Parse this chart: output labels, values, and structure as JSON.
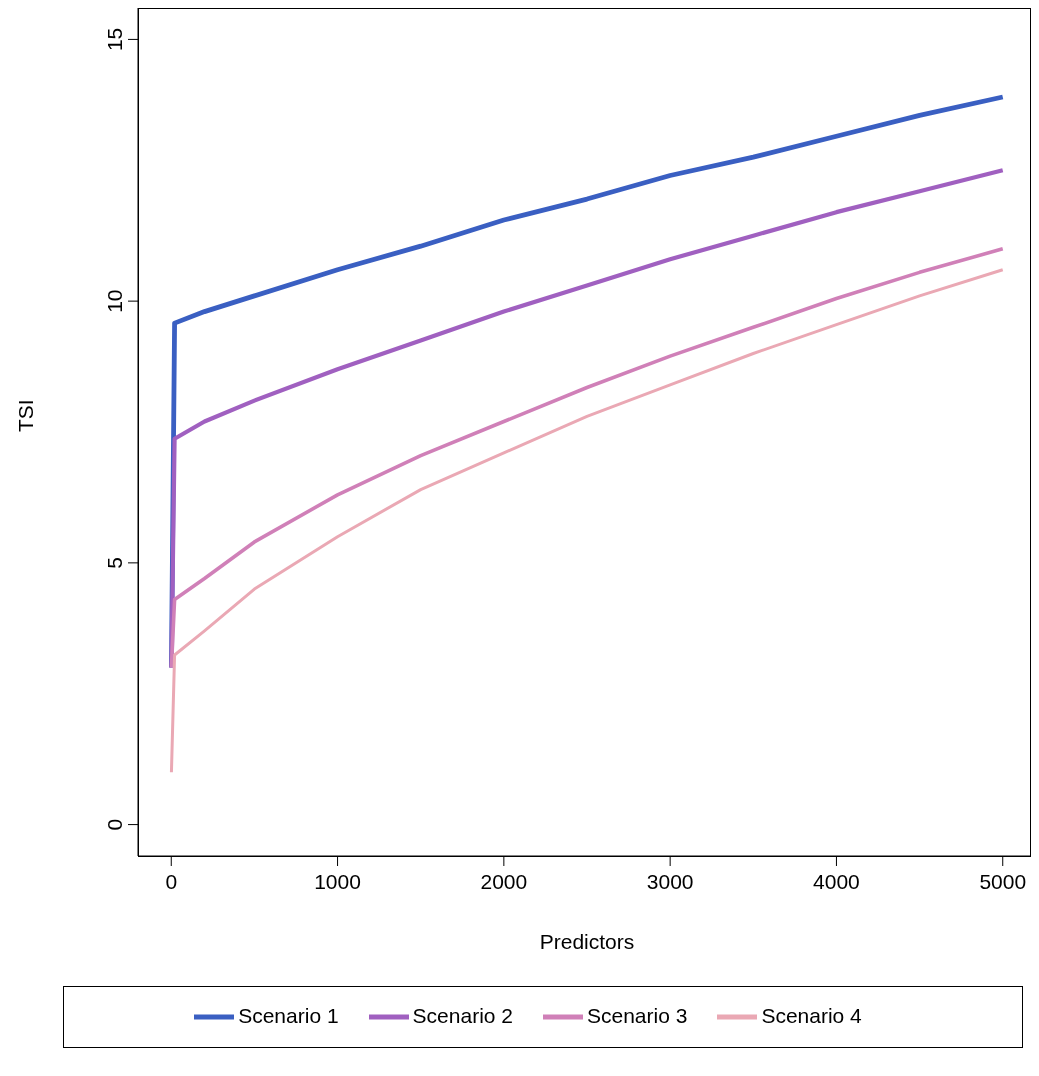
{
  "chart_data": {
    "type": "line",
    "xlabel": "Predictors",
    "ylabel": "TSI",
    "x": [
      1,
      20,
      200,
      500,
      1000,
      1500,
      2000,
      2500,
      3000,
      3500,
      4000,
      4500,
      5000
    ],
    "series": [
      {
        "name": "Scenario 1",
        "color": "#3a5fc2",
        "values": [
          3.0,
          9.58,
          9.8,
          10.1,
          10.6,
          11.05,
          11.55,
          11.95,
          12.4,
          12.75,
          13.15,
          13.55,
          13.9
        ]
      },
      {
        "name": "Scenario 2",
        "color": "#a060c0",
        "values": [
          3.0,
          7.37,
          7.7,
          8.1,
          8.7,
          9.25,
          9.8,
          10.3,
          10.8,
          11.25,
          11.7,
          12.1,
          12.5
        ]
      },
      {
        "name": "Scenario 3",
        "color": "#d080b8",
        "values": [
          3.0,
          4.3,
          4.7,
          5.4,
          6.3,
          7.05,
          7.7,
          8.35,
          8.95,
          9.5,
          10.05,
          10.55,
          11.0
        ]
      },
      {
        "name": "Scenario 4",
        "color": "#eaa8b4",
        "values": [
          1.0,
          3.24,
          3.7,
          4.5,
          5.5,
          6.4,
          7.1,
          7.8,
          8.4,
          9.0,
          9.55,
          10.1,
          10.6
        ]
      }
    ],
    "xlim": [
      -200,
      5200
    ],
    "xticks": [
      0,
      1000,
      2000,
      3000,
      4000,
      5000
    ],
    "ylim": [
      -0.6,
      15.6
    ],
    "yticks": [
      0,
      5,
      10,
      15
    ],
    "grid": false,
    "legend": "bottom",
    "marker": "none",
    "line_style": "solid"
  }
}
